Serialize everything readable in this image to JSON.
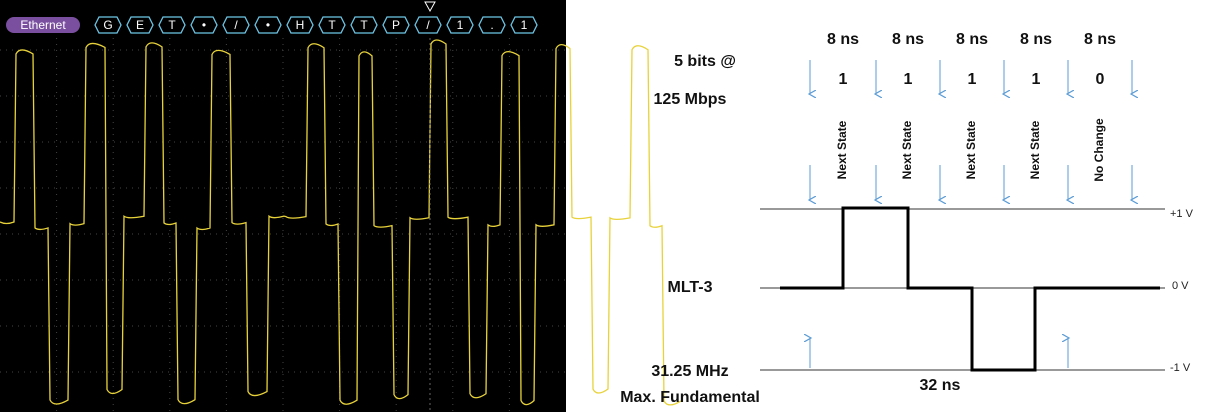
{
  "scope": {
    "protocol": "Ethernet",
    "decode": [
      "G",
      "E",
      "T",
      "•",
      "/",
      "•",
      "H",
      "T",
      "T",
      "P",
      "/",
      "1",
      ".",
      "1"
    ]
  },
  "diagram": {
    "rate_line1": "5 bits @",
    "rate_line2": "125 Mbps",
    "bit_times": [
      "8 ns",
      "8 ns",
      "8 ns",
      "8 ns",
      "8 ns"
    ],
    "bits": [
      "1",
      "1",
      "1",
      "1",
      "0"
    ],
    "states": [
      "Next State",
      "Next State",
      "Next State",
      "Next State",
      "No Change"
    ],
    "signal_label": "MLT-3",
    "levels": [
      "+1 V",
      "0 V",
      "-1 V"
    ],
    "freq_line1": "31.25 MHz",
    "freq_line2": "Max. Fundamental",
    "period": "32 ns"
  }
}
